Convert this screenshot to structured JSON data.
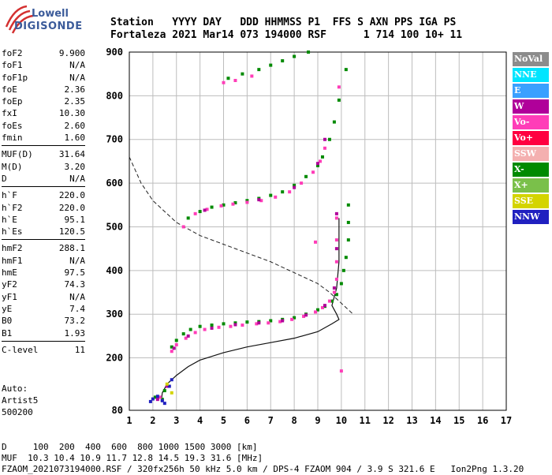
{
  "header": {
    "line1": "Station   YYYY DAY   DDD HHMMSS P1  FFS S AXN PPS IGA PS",
    "line2": "Fortaleza 2021 Mar14 073 194000 RSF      1 714 100 10+ 11"
  },
  "logo": {
    "line1": "Lowell",
    "line2": "DIGISONDE"
  },
  "params_group1": [
    {
      "name": "foF2",
      "value": "9.900"
    },
    {
      "name": "foF1",
      "value": "N/A"
    },
    {
      "name": "foF1p",
      "value": "N/A"
    },
    {
      "name": "foE",
      "value": "2.36"
    },
    {
      "name": "foEp",
      "value": "2.35"
    },
    {
      "name": "fxI",
      "value": "10.30"
    },
    {
      "name": "foEs",
      "value": "2.60"
    },
    {
      "name": "fmin",
      "value": "1.60"
    }
  ],
  "params_group2": [
    {
      "name": "MUF(D)",
      "value": "31.64"
    },
    {
      "name": "M(D)",
      "value": "3.20"
    },
    {
      "name": "D",
      "value": "N/A"
    }
  ],
  "params_group3": [
    {
      "name": "h`F",
      "value": "220.0"
    },
    {
      "name": "h`F2",
      "value": "220.0"
    },
    {
      "name": "h`E",
      "value": "95.1"
    },
    {
      "name": "h`Es",
      "value": "120.5"
    }
  ],
  "params_group4": [
    {
      "name": "hmF2",
      "value": "288.1"
    },
    {
      "name": "hmF1",
      "value": "N/A"
    },
    {
      "name": "hmE",
      "value": "97.5"
    },
    {
      "name": "yF2",
      "value": "74.3"
    },
    {
      "name": "yF1",
      "value": "N/A"
    },
    {
      "name": "yE",
      "value": "7.4"
    },
    {
      "name": "B0",
      "value": "73.2"
    },
    {
      "name": "B1",
      "value": "1.93"
    }
  ],
  "params_group5": [
    {
      "name": "C-level",
      "value": "11"
    }
  ],
  "auto": {
    "line1": "Auto:",
    "line2": "Artist5",
    "line3": "500200"
  },
  "footer": {
    "line1": "D     100  200  400  600  800 1000 1500 3000 [km]",
    "line2": "MUF  10.3 10.4 10.9 11.7 12.8 14.5 19.3 31.6 [MHz]",
    "line3": "FZAOM_2021073194000.RSF / 320fx256h 50 kHz 5.0 km / DPS-4 FZAOM 904 / 3.9 S 321.6 E   Ion2Png 1.3.20"
  },
  "legend": [
    {
      "label": "NoVal",
      "color": "#8c8c8c"
    },
    {
      "label": "NNE",
      "color": "#00e5ff"
    },
    {
      "label": "E",
      "color": "#3aa0ff"
    },
    {
      "label": "W",
      "color": "#b0009a"
    },
    {
      "label": "Vo-",
      "color": "#ff3db8"
    },
    {
      "label": "Vo+",
      "color": "#ff0040"
    },
    {
      "label": "SSW",
      "color": "#f4b0b0"
    },
    {
      "label": "X-",
      "color": "#008a00"
    },
    {
      "label": "X+",
      "color": "#7ac04a"
    },
    {
      "label": "SSE",
      "color": "#d4d400"
    },
    {
      "label": "NNW",
      "color": "#2020c0"
    }
  ],
  "chart_data": {
    "type": "scatter",
    "x_ticks": [
      1,
      2,
      3,
      4,
      5,
      6,
      7,
      8,
      9,
      10,
      11,
      12,
      13,
      14,
      15,
      16,
      17
    ],
    "y_ticks": [
      80,
      200,
      300,
      400,
      500,
      600,
      700,
      800,
      900
    ],
    "x_range": [
      1,
      17
    ],
    "y_range": [
      80,
      900
    ],
    "grid": true,
    "series": [
      {
        "name": "X-",
        "color": "#008a00",
        "points": [
          [
            2.8,
            225
          ],
          [
            3.0,
            240
          ],
          [
            3.3,
            255
          ],
          [
            3.6,
            265
          ],
          [
            4.0,
            272
          ],
          [
            4.5,
            275
          ],
          [
            5.0,
            278
          ],
          [
            5.5,
            280
          ],
          [
            6.0,
            282
          ],
          [
            6.5,
            283
          ],
          [
            7.0,
            285
          ],
          [
            7.5,
            288
          ],
          [
            8.0,
            292
          ],
          [
            8.5,
            300
          ],
          [
            9.0,
            310
          ],
          [
            9.3,
            318
          ],
          [
            9.6,
            330
          ],
          [
            9.8,
            345
          ],
          [
            10.0,
            370
          ],
          [
            10.1,
            400
          ],
          [
            10.2,
            430
          ],
          [
            10.3,
            470
          ],
          [
            10.3,
            510
          ],
          [
            10.3,
            550
          ],
          [
            3.5,
            520
          ],
          [
            4.0,
            535
          ],
          [
            4.5,
            545
          ],
          [
            5.0,
            550
          ],
          [
            5.5,
            555
          ],
          [
            6.0,
            560
          ],
          [
            6.5,
            565
          ],
          [
            7.0,
            572
          ],
          [
            7.5,
            580
          ],
          [
            8.0,
            595
          ],
          [
            8.5,
            615
          ],
          [
            9.0,
            640
          ],
          [
            9.2,
            660
          ],
          [
            9.5,
            700
          ],
          [
            9.7,
            740
          ],
          [
            9.9,
            790
          ],
          [
            5.2,
            840
          ],
          [
            5.8,
            850
          ],
          [
            6.5,
            860
          ],
          [
            7.0,
            870
          ],
          [
            7.5,
            880
          ],
          [
            8.0,
            890
          ],
          [
            8.6,
            900
          ],
          [
            2.1,
            110
          ],
          [
            2.4,
            105
          ],
          [
            2.5,
            125
          ],
          [
            10.2,
            860
          ]
        ]
      },
      {
        "name": "Vo-",
        "color": "#ff3db8",
        "points": [
          [
            2.8,
            215
          ],
          [
            3.0,
            230
          ],
          [
            3.4,
            245
          ],
          [
            3.8,
            258
          ],
          [
            4.2,
            265
          ],
          [
            4.8,
            270
          ],
          [
            5.3,
            272
          ],
          [
            5.8,
            275
          ],
          [
            6.4,
            278
          ],
          [
            6.9,
            280
          ],
          [
            7.4,
            283
          ],
          [
            7.9,
            288
          ],
          [
            8.4,
            295
          ],
          [
            8.9,
            305
          ],
          [
            9.2,
            315
          ],
          [
            9.5,
            330
          ],
          [
            9.7,
            350
          ],
          [
            9.8,
            380
          ],
          [
            9.8,
            420
          ],
          [
            9.8,
            470
          ],
          [
            9.8,
            520
          ],
          [
            3.3,
            500
          ],
          [
            3.8,
            530
          ],
          [
            4.3,
            540
          ],
          [
            4.9,
            548
          ],
          [
            5.4,
            552
          ],
          [
            6.0,
            556
          ],
          [
            6.6,
            560
          ],
          [
            7.2,
            568
          ],
          [
            7.8,
            580
          ],
          [
            8.3,
            600
          ],
          [
            8.8,
            625
          ],
          [
            9.1,
            650
          ],
          [
            9.3,
            680
          ],
          [
            5.0,
            830
          ],
          [
            5.5,
            835
          ],
          [
            6.2,
            845
          ],
          [
            9.9,
            820
          ],
          [
            8.9,
            465
          ],
          [
            2.3,
            110
          ],
          [
            10.0,
            170
          ]
        ]
      },
      {
        "name": "W",
        "color": "#b0009a",
        "points": [
          [
            2.9,
            222
          ],
          [
            3.5,
            250
          ],
          [
            4.5,
            268
          ],
          [
            5.5,
            276
          ],
          [
            6.5,
            280
          ],
          [
            7.5,
            285
          ],
          [
            8.5,
            298
          ],
          [
            9.3,
            320
          ],
          [
            9.7,
            360
          ],
          [
            9.8,
            450
          ],
          [
            9.8,
            530
          ],
          [
            4.2,
            538
          ],
          [
            6.5,
            562
          ],
          [
            8.0,
            590
          ],
          [
            9.0,
            645
          ],
          [
            9.3,
            700
          ],
          [
            2.2,
            105
          ],
          [
            2.6,
            135
          ]
        ]
      },
      {
        "name": "NNW",
        "color": "#2020c0",
        "points": [
          [
            1.9,
            100
          ],
          [
            2.0,
            106
          ],
          [
            2.2,
            112
          ],
          [
            2.4,
            102
          ],
          [
            2.5,
            96
          ],
          [
            2.7,
            135
          ],
          [
            2.8,
            150
          ]
        ]
      },
      {
        "name": "SSE",
        "color": "#d4d400",
        "points": [
          [
            2.6,
            140
          ],
          [
            2.8,
            120
          ]
        ]
      }
    ],
    "profile_solid": [
      [
        2.35,
        100
      ],
      [
        2.4,
        120
      ],
      [
        2.6,
        140
      ],
      [
        3.0,
        160
      ],
      [
        3.5,
        180
      ],
      [
        4.0,
        195
      ],
      [
        5.0,
        212
      ],
      [
        6.0,
        225
      ],
      [
        7.0,
        235
      ],
      [
        8.0,
        245
      ],
      [
        9.0,
        260
      ],
      [
        9.6,
        278
      ],
      [
        9.9,
        288
      ],
      [
        9.8,
        300
      ],
      [
        9.6,
        320
      ],
      [
        9.8,
        360
      ],
      [
        9.9,
        420
      ],
      [
        9.9,
        480
      ],
      [
        9.9,
        520
      ]
    ],
    "profile_dashed": [
      [
        1.0,
        660
      ],
      [
        1.5,
        600
      ],
      [
        2.0,
        560
      ],
      [
        3.0,
        510
      ],
      [
        4.0,
        480
      ],
      [
        5.0,
        460
      ],
      [
        6.0,
        440
      ],
      [
        7.0,
        420
      ],
      [
        8.0,
        395
      ],
      [
        9.0,
        370
      ],
      [
        9.5,
        350
      ],
      [
        9.9,
        330
      ],
      [
        10.3,
        310
      ],
      [
        10.5,
        300
      ]
    ]
  }
}
